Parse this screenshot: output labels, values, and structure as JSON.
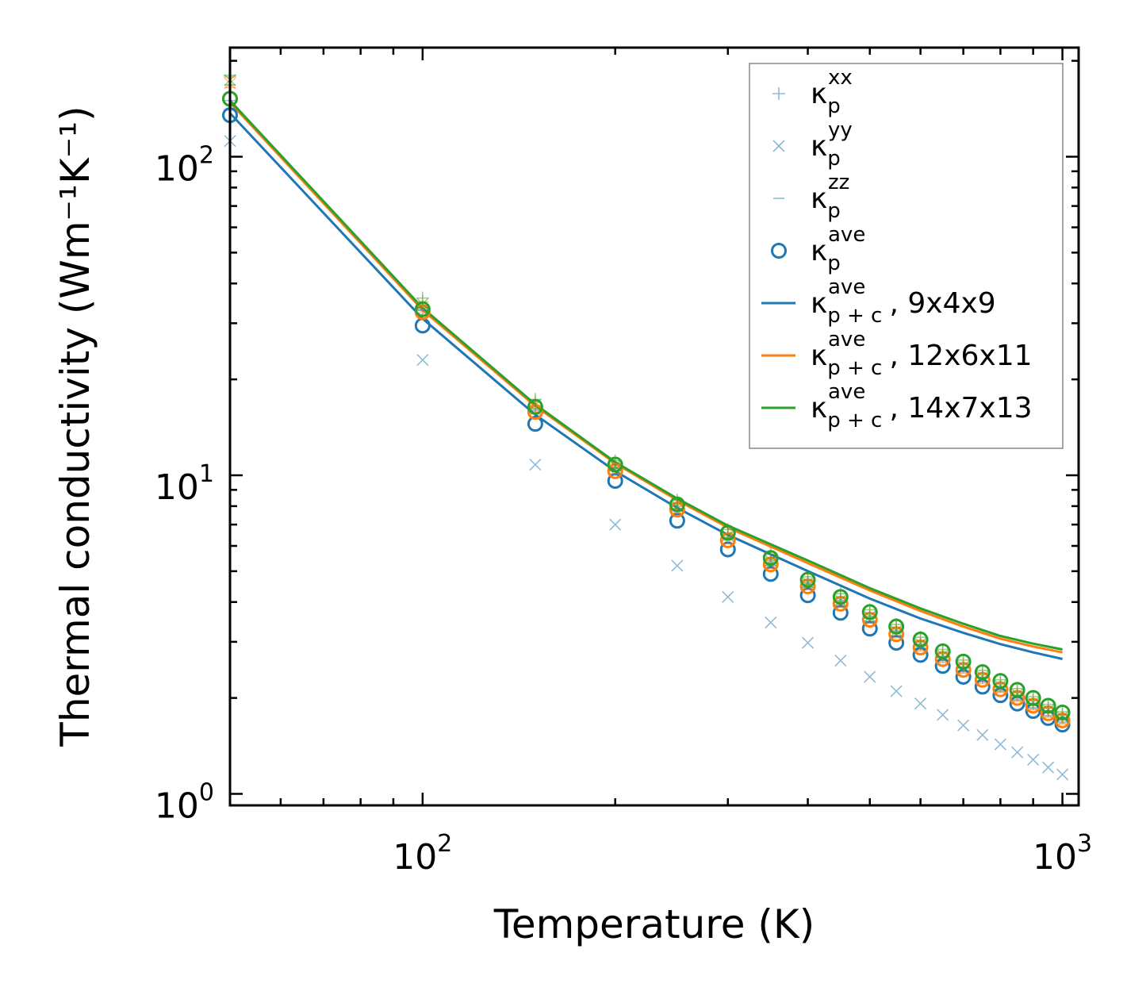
{
  "chart_data": {
    "type": "scatter",
    "title": "",
    "xlabel": "Temperature (K)",
    "ylabel": "Thermal conductivity (Wm⁻¹K⁻¹)",
    "xscale": "log",
    "yscale": "log",
    "xlim": [
      50,
      1060
    ],
    "ylim": [
      0.92,
      220
    ],
    "x_ticks": [
      {
        "value": 100,
        "base": "10",
        "exp": "2"
      },
      {
        "value": 1000,
        "base": "10",
        "exp": "3"
      }
    ],
    "y_ticks": [
      {
        "value": 1,
        "base": "10",
        "exp": "0"
      },
      {
        "value": 10,
        "base": "10",
        "exp": "1"
      },
      {
        "value": 100,
        "base": "10",
        "exp": "2"
      }
    ],
    "legend_position": "top-right",
    "temperatures": [
      50,
      100,
      150,
      200,
      250,
      300,
      350,
      400,
      450,
      500,
      550,
      600,
      650,
      700,
      750,
      800,
      850,
      900,
      950,
      1000
    ],
    "series": [
      {
        "name": "9x4x9",
        "type": "scatter",
        "marker": "plus",
        "component": "xx",
        "color": "#1f77b4",
        "alpha": 0.5,
        "values": [
          140,
          33,
          16.5,
          10.6,
          8.0,
          6.5,
          5.4,
          4.6,
          4.05,
          3.6,
          3.25,
          2.95,
          2.7,
          2.5,
          2.32,
          2.17,
          2.04,
          1.92,
          1.82,
          1.73
        ]
      },
      {
        "name": "9x4x9",
        "type": "scatter",
        "marker": "x",
        "component": "yy",
        "color": "#1f77b4",
        "alpha": 0.5,
        "values": [
          112,
          23,
          10.8,
          7.0,
          5.2,
          4.15,
          3.45,
          2.98,
          2.62,
          2.33,
          2.1,
          1.92,
          1.77,
          1.64,
          1.53,
          1.43,
          1.35,
          1.28,
          1.21,
          1.15
        ]
      },
      {
        "name": "9x4x9",
        "type": "scatter",
        "marker": "hline",
        "component": "zz",
        "color": "#1f77b4",
        "alpha": 0.5,
        "values": [
          150,
          33,
          16.0,
          10.5,
          7.8,
          6.3,
          5.2,
          4.45,
          3.9,
          3.48,
          3.13,
          2.85,
          2.62,
          2.42,
          2.25,
          2.1,
          1.97,
          1.86,
          1.76,
          1.68
        ]
      },
      {
        "name": "9x4x9",
        "type": "scatter",
        "marker": "circle",
        "component": "ave",
        "color": "#1f77b4",
        "values": [
          135,
          29.5,
          14.5,
          9.6,
          7.2,
          5.85,
          4.9,
          4.2,
          3.7,
          3.3,
          2.98,
          2.73,
          2.52,
          2.33,
          2.17,
          2.04,
          1.92,
          1.82,
          1.73,
          1.65
        ]
      },
      {
        "name": "12x6x11",
        "type": "scatter",
        "marker": "plus",
        "component": "xx",
        "color": "#ff7f0e",
        "alpha": 0.5,
        "values": [
          178,
          35,
          17,
          10.9,
          8.2,
          6.6,
          5.5,
          4.7,
          4.15,
          3.7,
          3.33,
          3.03,
          2.78,
          2.57,
          2.39,
          2.23,
          2.09,
          1.97,
          1.86,
          1.77
        ]
      },
      {
        "name": "12x6x11",
        "type": "scatter",
        "marker": "x",
        "component": "yy",
        "color": "#ff7f0e",
        "alpha": 0.5,
        "values": [
          170,
          33,
          16.0,
          10.4,
          7.8,
          6.3,
          5.25,
          4.5,
          3.95,
          3.52,
          3.17,
          2.88,
          2.65,
          2.45,
          2.28,
          2.13,
          2.0,
          1.88,
          1.78,
          1.69
        ]
      },
      {
        "name": "12x6x11",
        "type": "scatter",
        "marker": "hline",
        "component": "zz",
        "color": "#ff7f0e",
        "alpha": 0.5,
        "values": [
          165,
          32,
          15.6,
          10.1,
          7.6,
          6.1,
          5.1,
          4.38,
          3.85,
          3.43,
          3.09,
          2.81,
          2.58,
          2.39,
          2.22,
          2.08,
          1.95,
          1.84,
          1.74,
          1.66
        ]
      },
      {
        "name": "12x6x11",
        "type": "scatter",
        "marker": "circle",
        "component": "ave",
        "color": "#ff7f0e",
        "values": [
          152,
          32.5,
          15.8,
          10.3,
          7.8,
          6.25,
          5.25,
          4.48,
          3.95,
          3.52,
          3.17,
          2.88,
          2.65,
          2.45,
          2.28,
          2.13,
          2.0,
          1.89,
          1.79,
          1.7
        ]
      },
      {
        "name": "14x7x13",
        "type": "scatter",
        "marker": "plus",
        "component": "xx",
        "color": "#2ca02c",
        "alpha": 0.5,
        "values": [
          180,
          36,
          17.3,
          11.1,
          8.35,
          6.75,
          5.65,
          4.8,
          4.25,
          3.78,
          3.4,
          3.1,
          2.84,
          2.63,
          2.44,
          2.28,
          2.14,
          2.02,
          1.91,
          1.81
        ]
      },
      {
        "name": "14x7x13",
        "type": "scatter",
        "marker": "x",
        "component": "yy",
        "color": "#2ca02c",
        "alpha": 0.5,
        "values": [
          174,
          34.5,
          16.6,
          10.7,
          8.0,
          6.45,
          5.4,
          4.6,
          4.05,
          3.6,
          3.25,
          2.96,
          2.72,
          2.51,
          2.33,
          2.18,
          2.05,
          1.93,
          1.83,
          1.74
        ]
      },
      {
        "name": "14x7x13",
        "type": "scatter",
        "marker": "hline",
        "component": "zz",
        "color": "#2ca02c",
        "alpha": 0.5,
        "values": [
          168,
          33.5,
          16.2,
          10.5,
          7.85,
          6.35,
          5.3,
          4.55,
          4.0,
          3.56,
          3.21,
          2.92,
          2.68,
          2.48,
          2.31,
          2.16,
          2.03,
          1.91,
          1.81,
          1.72
        ]
      },
      {
        "name": "14x7x13",
        "type": "scatter",
        "marker": "circle",
        "component": "ave",
        "color": "#2ca02c",
        "values": [
          152,
          33.2,
          16.4,
          10.8,
          8.1,
          6.6,
          5.5,
          4.7,
          4.15,
          3.72,
          3.35,
          3.05,
          2.8,
          2.6,
          2.41,
          2.26,
          2.12,
          2.0,
          1.89,
          1.8
        ]
      }
    ],
    "lines": [
      {
        "name": "9x4x9",
        "color": "#1f77b4",
        "x": [
          50,
          100,
          150,
          200,
          250,
          300,
          400,
          500,
          600,
          700,
          800,
          900,
          1000
        ],
        "values": [
          137,
          31,
          15.5,
          10.3,
          7.9,
          6.5,
          5.0,
          4.1,
          3.55,
          3.2,
          2.95,
          2.78,
          2.65
        ]
      },
      {
        "name": "12x6x11",
        "color": "#ff7f0e",
        "x": [
          50,
          100,
          150,
          200,
          250,
          300,
          400,
          500,
          600,
          700,
          800,
          900,
          1000
        ],
        "values": [
          148,
          33,
          16.5,
          10.9,
          8.35,
          6.85,
          5.3,
          4.35,
          3.75,
          3.35,
          3.07,
          2.9,
          2.78
        ]
      },
      {
        "name": "14x7x13",
        "color": "#2ca02c",
        "x": [
          50,
          100,
          150,
          200,
          250,
          300,
          400,
          500,
          600,
          700,
          800,
          900,
          1000
        ],
        "values": [
          150,
          33.5,
          16.7,
          11.0,
          8.45,
          6.95,
          5.4,
          4.42,
          3.82,
          3.42,
          3.13,
          2.96,
          2.84
        ]
      }
    ],
    "legend": [
      {
        "kind": "marker",
        "marker": "plus",
        "color": "#1f77b4",
        "alpha": 0.5,
        "symbol": "κ",
        "sub": "p",
        "sup": "xx",
        "suffix": ""
      },
      {
        "kind": "marker",
        "marker": "x",
        "color": "#1f77b4",
        "alpha": 0.5,
        "symbol": "κ",
        "sub": "p",
        "sup": "yy",
        "suffix": ""
      },
      {
        "kind": "marker",
        "marker": "hline",
        "color": "#1f77b4",
        "alpha": 0.5,
        "symbol": "κ",
        "sub": "p",
        "sup": "zz",
        "suffix": ""
      },
      {
        "kind": "marker",
        "marker": "circle",
        "color": "#1f77b4",
        "alpha": 1,
        "symbol": "κ",
        "sub": "p",
        "sup": "ave",
        "suffix": ""
      },
      {
        "kind": "line",
        "color": "#1f77b4",
        "symbol": "κ",
        "sub": "p + c",
        "sup": "ave",
        "suffix": ", 9x4x9"
      },
      {
        "kind": "line",
        "color": "#ff7f0e",
        "symbol": "κ",
        "sub": "p + c",
        "sup": "ave",
        "suffix": ", 12x6x11"
      },
      {
        "kind": "line",
        "color": "#2ca02c",
        "symbol": "κ",
        "sub": "p + c",
        "sup": "ave",
        "suffix": ", 14x7x13"
      }
    ]
  }
}
